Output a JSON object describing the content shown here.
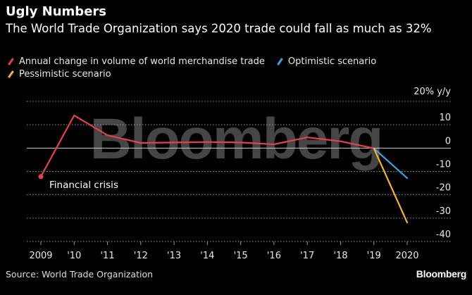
{
  "header": {
    "title": "Ugly Numbers",
    "subtitle": "The World Trade Organization says 2020 trade could fall as much as 32%"
  },
  "legend": [
    {
      "label": "Annual change in volume of world merchandise trade",
      "color": "#e8404a"
    },
    {
      "label": "Optimistic scenario",
      "color": "#3ea3e6"
    },
    {
      "label": "Pessimistic scenario",
      "color": "#f7b52a"
    }
  ],
  "watermark": "Bloomberg",
  "footer": {
    "source": "Source: World Trade Organization",
    "brand": "Bloomberg"
  },
  "chart_data": {
    "type": "line",
    "title": "Ugly Numbers",
    "ylabel": "20% y/y",
    "xlabel": "",
    "ylim": [
      -40,
      20
    ],
    "yticks": [
      10,
      0,
      -10,
      -20,
      -30,
      -40
    ],
    "ytick_labels": [
      "10",
      "0",
      "-10",
      "-20",
      "-30",
      "-40"
    ],
    "x_tick_values": [
      2009,
      2010,
      2011,
      2012,
      2013,
      2014,
      2015,
      2016,
      2017,
      2018,
      2019,
      2020
    ],
    "x_tick_labels": [
      "2009",
      "'10",
      "'11",
      "'12",
      "'13",
      "'14",
      "'15",
      "'16",
      "'17",
      "'18",
      "'19",
      "2020"
    ],
    "series": [
      {
        "name": "Annual change in volume of world merchandise trade",
        "color": "#e8404a",
        "x": [
          2009,
          2010,
          2011,
          2012,
          2013,
          2014,
          2015,
          2016,
          2017,
          2018,
          2019
        ],
        "values": [
          -12.2,
          14.0,
          5.5,
          2.2,
          2.4,
          2.6,
          2.4,
          1.6,
          4.6,
          2.9,
          -0.1
        ]
      },
      {
        "name": "Optimistic scenario",
        "color": "#3ea3e6",
        "x": [
          2019,
          2020
        ],
        "values": [
          -0.1,
          -12.9
        ]
      },
      {
        "name": "Pessimistic scenario",
        "color": "#f7b52a",
        "x": [
          2019,
          2020
        ],
        "values": [
          -0.1,
          -31.9
        ]
      }
    ],
    "annotations": [
      {
        "text": "Financial crisis",
        "x": 2009,
        "y": -12.2
      }
    ]
  }
}
